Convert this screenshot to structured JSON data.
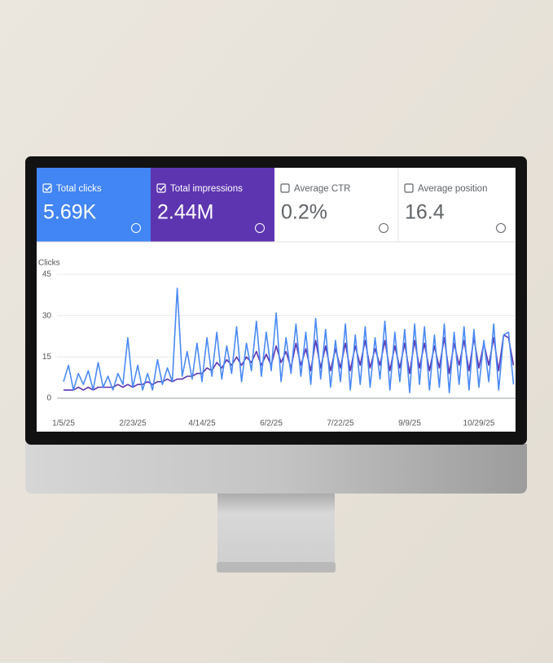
{
  "cards": [
    {
      "label": "Total clicks",
      "value": "5.69K",
      "checked": true,
      "color": "#4285f4"
    },
    {
      "label": "Total impressions",
      "value": "2.44M",
      "checked": true,
      "color": "#5e35b1"
    },
    {
      "label": "Average CTR",
      "value": "0.2%",
      "checked": false,
      "color": "#ffffff"
    },
    {
      "label": "Average position",
      "value": "16.4",
      "checked": false,
      "color": "#ffffff"
    }
  ],
  "chart_data": {
    "type": "line",
    "y_label": "Clicks",
    "categories": [
      "1/5/25",
      null,
      null,
      null,
      null,
      null,
      null,
      null,
      null,
      null,
      null,
      null,
      null,
      null,
      "2/23/25",
      null,
      null,
      null,
      null,
      null,
      null,
      null,
      null,
      null,
      null,
      null,
      null,
      null,
      "4/14/25",
      null,
      null,
      null,
      null,
      null,
      null,
      null,
      null,
      null,
      null,
      null,
      null,
      null,
      "6/2/25",
      null,
      null,
      null,
      null,
      null,
      null,
      null,
      null,
      null,
      null,
      null,
      null,
      null,
      "7/22/25",
      null,
      null,
      null,
      null,
      null,
      null,
      null,
      null,
      null,
      null,
      null,
      null,
      null,
      "9/9/25",
      null,
      null,
      null,
      null,
      null,
      null,
      null,
      null,
      null,
      null,
      null,
      null,
      null,
      "10/29/25",
      null,
      null,
      null,
      null,
      null,
      null,
      null
    ],
    "series": [
      {
        "name": "Total impressions",
        "color": "#5e35b1",
        "values": [
          3,
          3,
          3,
          4,
          3,
          4,
          3,
          4,
          4,
          4,
          4,
          5,
          4,
          5,
          4,
          5,
          5,
          6,
          5,
          6,
          6,
          7,
          6,
          7,
          7,
          8,
          8,
          9,
          9,
          11,
          10,
          13,
          11,
          14,
          12,
          15,
          12,
          15,
          13,
          17,
          12,
          16,
          12,
          19,
          13,
          17,
          11,
          20,
          12,
          18,
          10,
          21,
          11,
          19,
          10,
          18,
          11,
          20,
          10,
          19,
          12,
          21,
          11,
          18,
          12,
          21,
          10,
          19,
          11,
          20,
          9,
          21,
          11,
          20,
          10,
          19,
          11,
          22,
          9,
          20,
          12,
          21,
          10,
          22,
          11,
          20,
          12,
          22,
          10,
          23,
          22,
          12
        ]
      },
      {
        "name": "Total clicks",
        "color": "#4a8af4",
        "values": [
          6,
          12,
          3,
          9,
          5,
          10,
          3,
          13,
          4,
          8,
          3,
          9,
          5,
          22,
          4,
          12,
          3,
          9,
          3,
          14,
          5,
          11,
          6,
          40,
          8,
          17,
          7,
          20,
          6,
          22,
          8,
          24,
          7,
          19,
          9,
          26,
          6,
          20,
          10,
          28,
          8,
          24,
          10,
          31,
          6,
          22,
          9,
          27,
          8,
          24,
          5,
          29,
          7,
          25,
          4,
          21,
          6,
          27,
          3,
          23,
          5,
          26,
          4,
          22,
          7,
          28,
          3,
          24,
          6,
          25,
          2,
          27,
          5,
          26,
          3,
          23,
          4,
          27,
          2,
          24,
          5,
          26,
          3,
          25,
          4,
          21,
          6,
          27,
          3,
          23,
          24,
          5
        ]
      }
    ],
    "ylim": [
      0,
      45
    ],
    "yticks": [
      0,
      15,
      30,
      45
    ],
    "grid": true
  }
}
